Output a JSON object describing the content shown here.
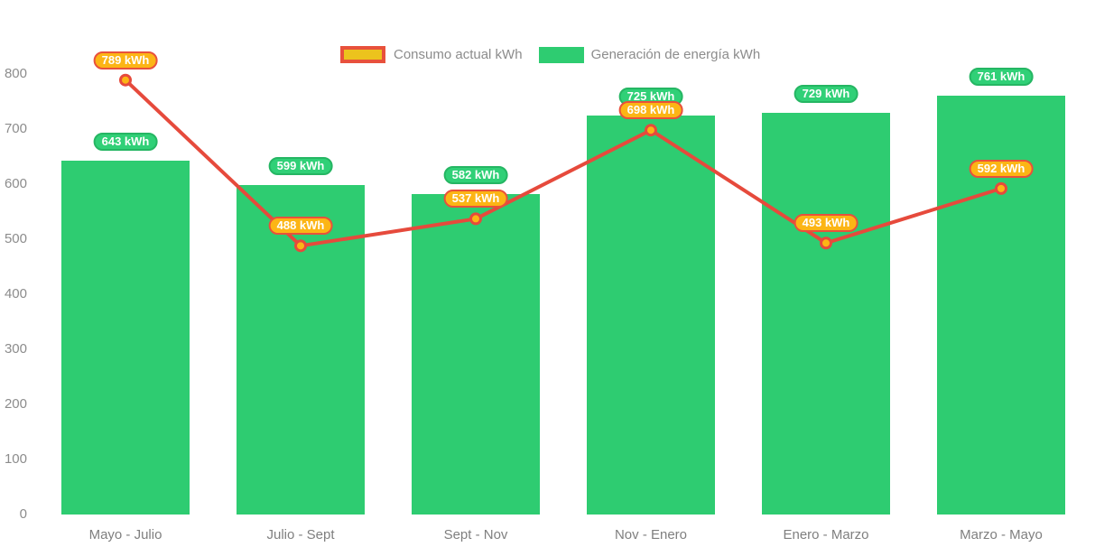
{
  "chart_data": {
    "type": "combo-bar-line",
    "categories": [
      "Mayo - Julio",
      "Julio - Sept",
      "Sept - Nov",
      "Nov - Enero",
      "Enero - Marzo",
      "Marzo - Mayo"
    ],
    "series": [
      {
        "name": "Consumo actual kWh",
        "type": "line",
        "values": [
          789,
          488,
          537,
          698,
          493,
          592
        ],
        "labels": [
          "789 kWh",
          "488 kWh",
          "537 kWh",
          "698 kWh",
          "493 kWh",
          "592 kWh"
        ],
        "line_color": "#e64a3c",
        "marker_fill": "#fcb515",
        "marker_stroke": "#e64a3c",
        "label_fill": "#fcb515",
        "label_border": "#e8513c"
      },
      {
        "name": "Generación de energía kWh",
        "type": "bar",
        "values": [
          643,
          599,
          582,
          725,
          729,
          761
        ],
        "labels": [
          "643 kWh",
          "599 kWh",
          "582 kWh",
          "725 kWh",
          "729 kWh",
          "761 kWh"
        ],
        "bar_color": "#2ecc71",
        "label_fill": "#30d077",
        "label_border": "#25b663"
      }
    ],
    "y_axis": {
      "min": 0,
      "max": 800,
      "step": 100,
      "tick_labels": [
        "0",
        "100",
        "200",
        "300",
        "400",
        "500",
        "600",
        "700",
        "800"
      ]
    },
    "data_label_suffix": " kWh",
    "legend_position": "top",
    "grid": false,
    "axis_text_color": "#8c8c8c",
    "background": "#ffffff"
  }
}
